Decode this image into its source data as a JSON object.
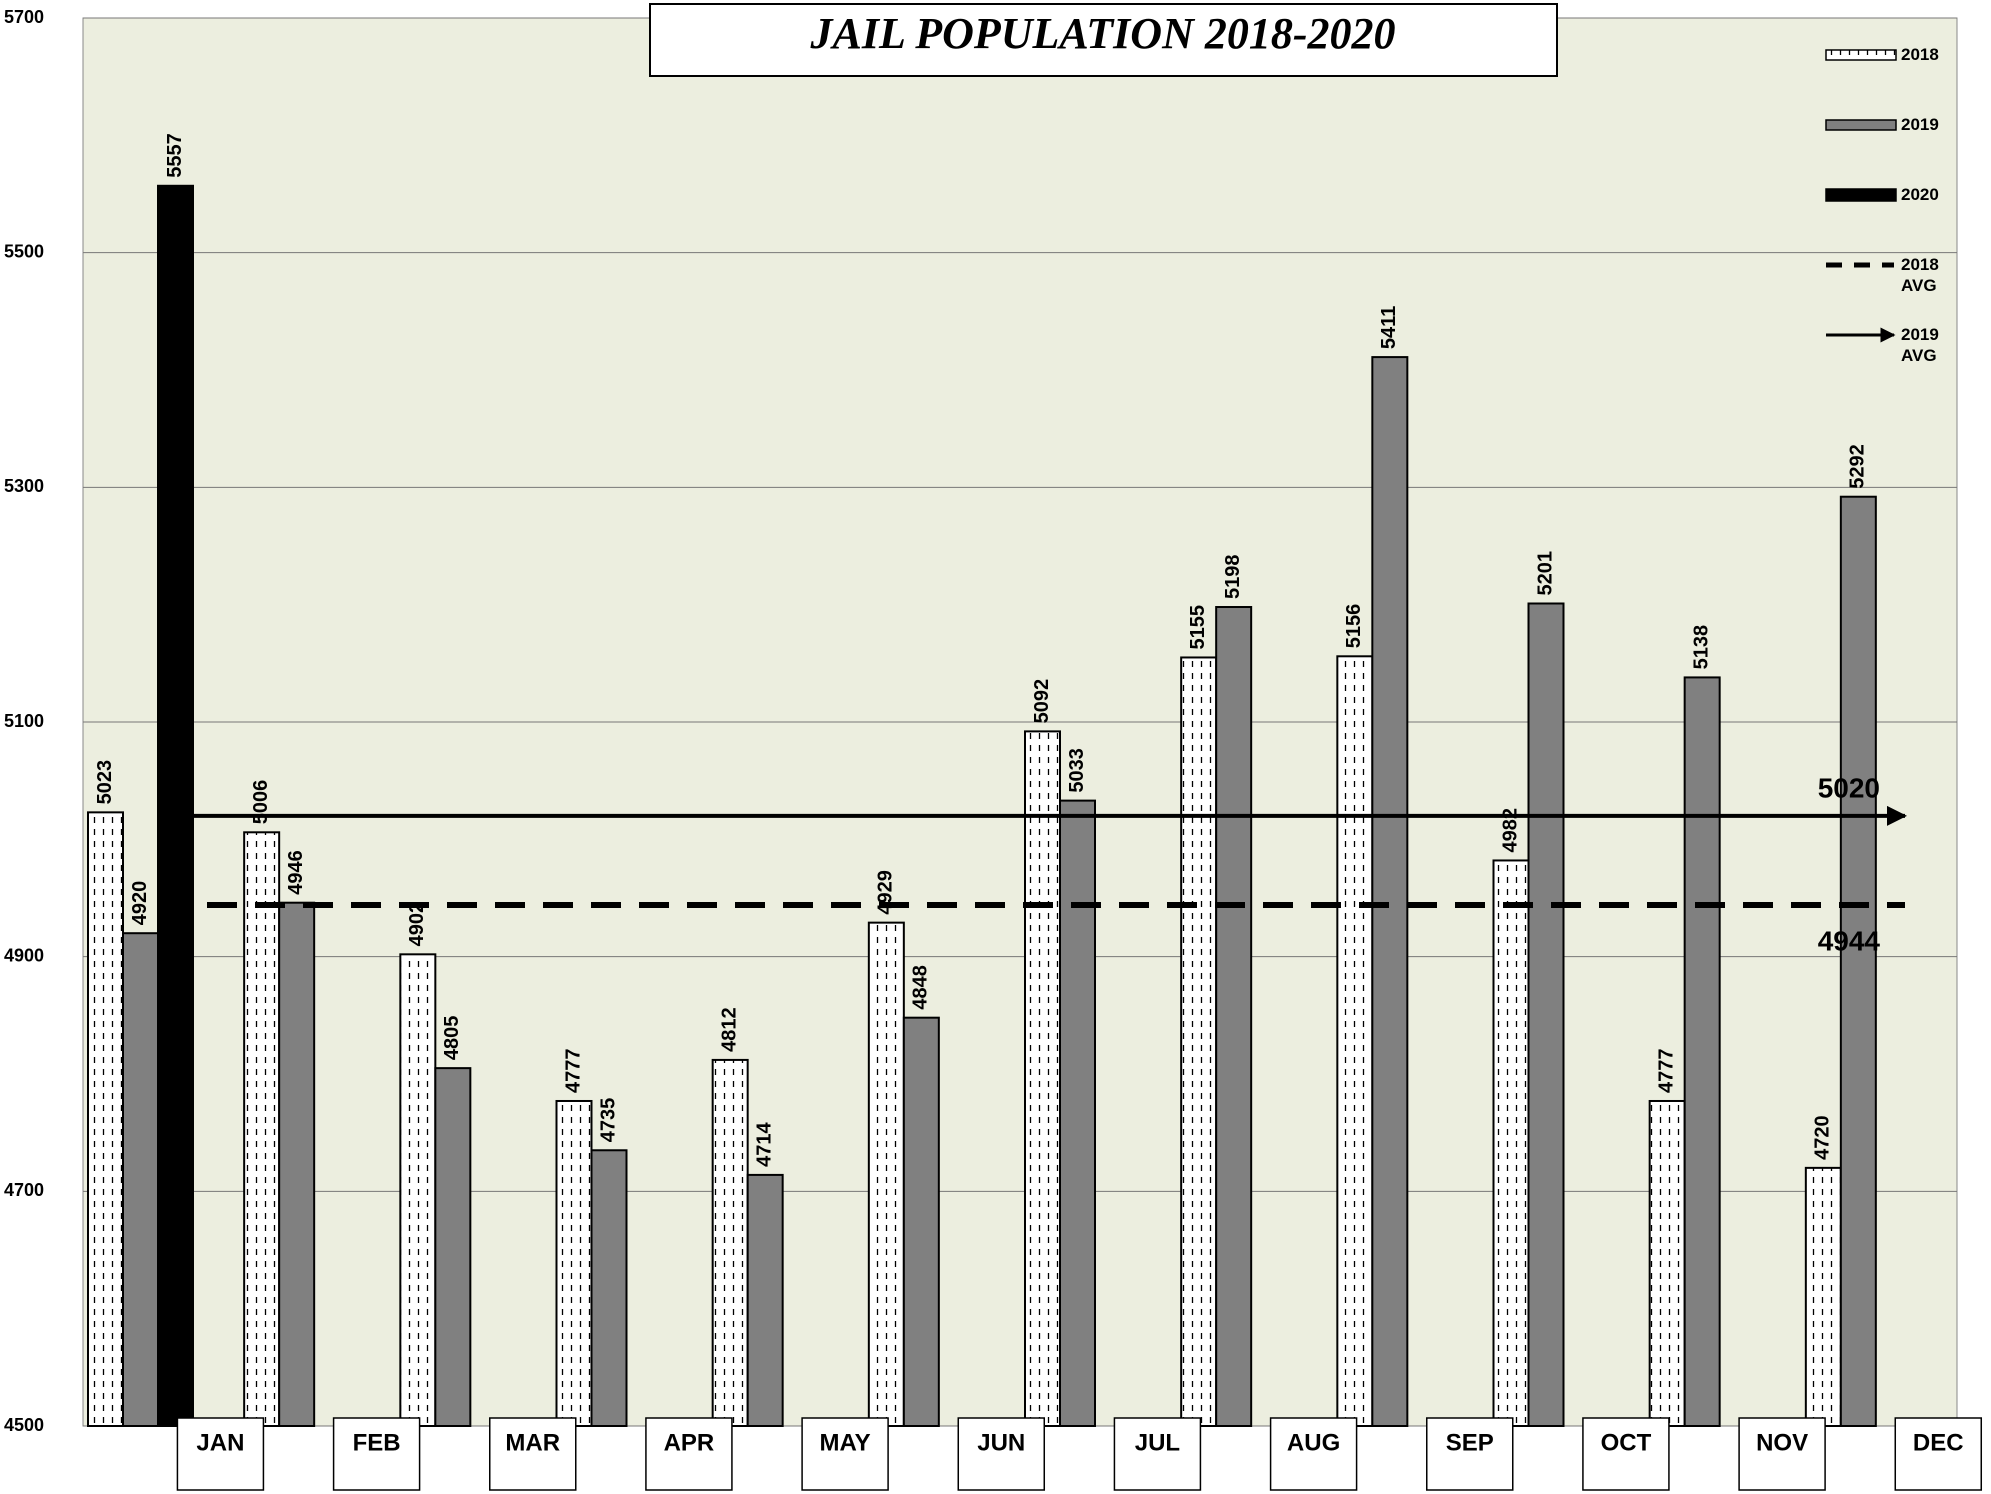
{
  "chart_data": {
    "type": "bar",
    "title": "JAIL POPULATION 2018-2020",
    "categories": [
      "JAN",
      "FEB",
      "MAR",
      "APR",
      "MAY",
      "JUN",
      "JUL",
      "AUG",
      "SEP",
      "OCT",
      "NOV",
      "DEC"
    ],
    "series": [
      {
        "name": "2018",
        "color": "#ffffff",
        "values": [
          5023,
          5006,
          4902,
          4777,
          4812,
          4929,
          5092,
          5155,
          5156,
          4982,
          4777,
          4720
        ]
      },
      {
        "name": "2019",
        "color": "#808080",
        "values": [
          4920,
          4946,
          4805,
          4735,
          4714,
          4848,
          5033,
          5198,
          5411,
          5201,
          5138,
          5292
        ]
      },
      {
        "name": "2020",
        "color": "#000000",
        "values": [
          5557,
          null,
          null,
          null,
          null,
          null,
          null,
          null,
          null,
          null,
          null,
          null
        ]
      }
    ],
    "averages": [
      {
        "name": "2018 AVG",
        "value": 4944,
        "style": "dashed"
      },
      {
        "name": "2019 AVG",
        "value": 5020,
        "style": "arrow"
      }
    ],
    "ylim": [
      4500,
      5700
    ],
    "yticks": [
      4500,
      4700,
      4900,
      5100,
      5300,
      5500,
      5700
    ],
    "grid": true,
    "legend": "top-right"
  }
}
